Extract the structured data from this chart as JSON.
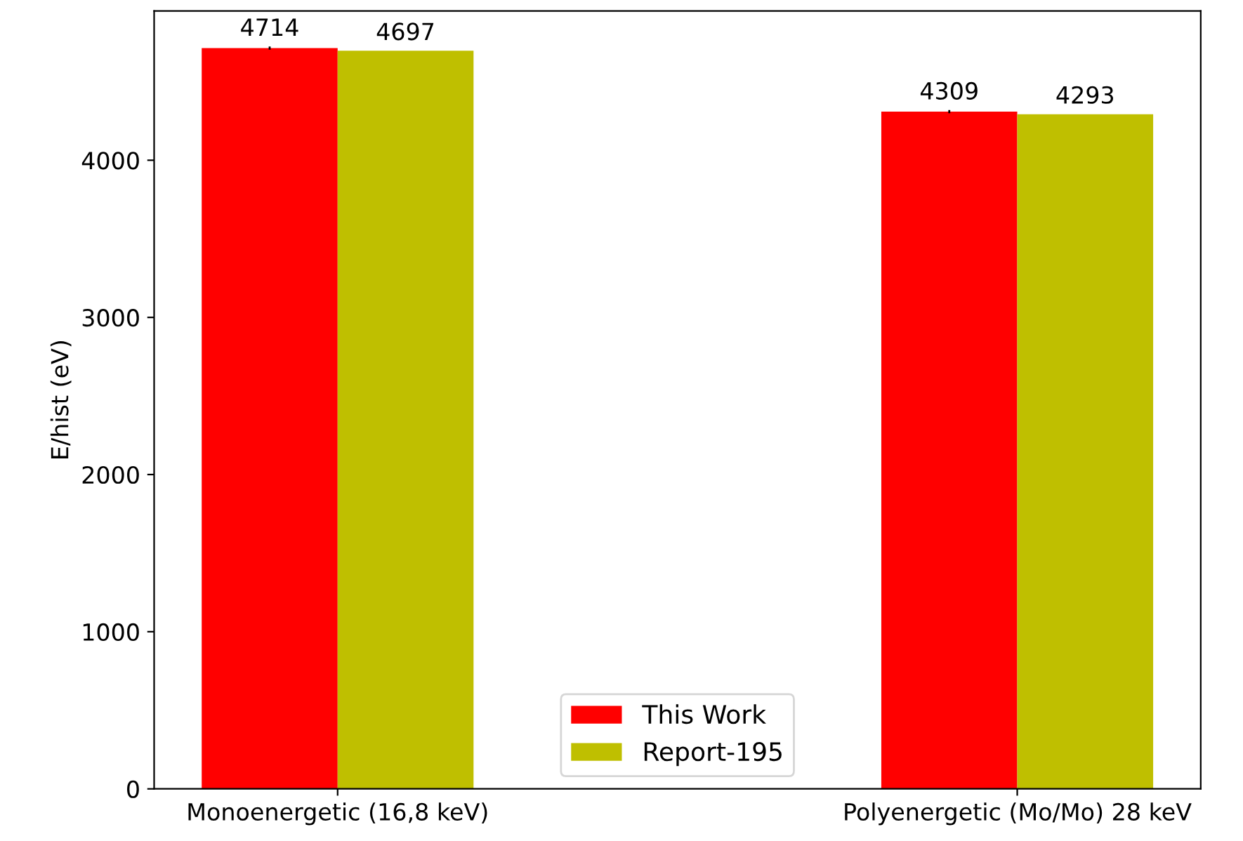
{
  "chart_data": {
    "type": "bar",
    "ylabel": "E/hist (eV)",
    "categories": [
      "Monoenergetic (16,8 keV)",
      "Polyenergetic (Mo/Mo) 28 keV"
    ],
    "series": [
      {
        "name": "This Work",
        "color": "#ff0000",
        "values": [
          4714,
          4309
        ],
        "errors": [
          10,
          10
        ]
      },
      {
        "name": "Report-195",
        "color": "#bfbf00",
        "values": [
          4697,
          4293
        ]
      }
    ],
    "ylim": [
      0,
      4950
    ],
    "yticks": [
      0,
      1000,
      2000,
      3000,
      4000
    ],
    "data_labels": true,
    "legend": "bottom",
    "grid": false
  }
}
